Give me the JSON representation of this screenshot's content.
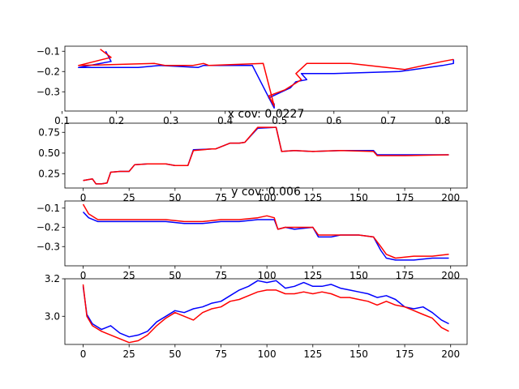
{
  "chart_data": [
    {
      "type": "line",
      "title": "",
      "xlabel": "",
      "ylabel": "",
      "xlim": [
        0.105,
        0.845
      ],
      "ylim": [
        -0.395,
        -0.075
      ],
      "xticks": [
        "0.1",
        "0.2",
        "0.3",
        "0.4",
        "0.5",
        "0.6",
        "0.7",
        "0.8"
      ],
      "yticks": [
        "-0.1",
        "-0.2",
        "-0.3"
      ],
      "series": [
        {
          "color": "#0000ff",
          "x": [
            0.18,
            0.19,
            0.13,
            0.24,
            0.28,
            0.35,
            0.36,
            0.45,
            0.49,
            0.49,
            0.48,
            0.52,
            0.53,
            0.55,
            0.54,
            0.6,
            0.72,
            0.8,
            0.82,
            0.82
          ],
          "y": [
            -0.1,
            -0.15,
            -0.18,
            -0.18,
            -0.17,
            -0.18,
            -0.17,
            -0.17,
            -0.38,
            -0.36,
            -0.33,
            -0.28,
            -0.25,
            -0.24,
            -0.21,
            -0.21,
            -0.2,
            -0.17,
            -0.16,
            -0.14
          ]
        },
        {
          "color": "#ff0000",
          "x": [
            0.17,
            0.19,
            0.13,
            0.27,
            0.29,
            0.34,
            0.36,
            0.37,
            0.47,
            0.49,
            0.48,
            0.51,
            0.54,
            0.53,
            0.55,
            0.63,
            0.73,
            0.8,
            0.82
          ],
          "y": [
            -0.09,
            -0.13,
            -0.17,
            -0.16,
            -0.17,
            -0.17,
            -0.16,
            -0.17,
            -0.16,
            -0.37,
            -0.32,
            -0.29,
            -0.24,
            -0.21,
            -0.16,
            -0.16,
            -0.19,
            -0.15,
            -0.14
          ]
        }
      ]
    },
    {
      "type": "line",
      "title": "x cov: 0.0227",
      "xlabel": "",
      "ylabel": "",
      "xlim": [
        -9.95,
        208.95
      ],
      "ylim": [
        0.08,
        0.86
      ],
      "xticks": [
        "0",
        "25",
        "50",
        "75",
        "100",
        "125",
        "150",
        "175",
        "200"
      ],
      "yticks": [
        "0.25",
        "0.50",
        "0.75"
      ],
      "series": [
        {
          "color": "#0000ff",
          "x": [
            0,
            5,
            7,
            10,
            13,
            15,
            20,
            25,
            28,
            35,
            45,
            50,
            57,
            60,
            70,
            72,
            80,
            85,
            88,
            95,
            105,
            108,
            115,
            125,
            140,
            158,
            160,
            175,
            199
          ],
          "y": [
            0.17,
            0.19,
            0.13,
            0.13,
            0.14,
            0.27,
            0.28,
            0.28,
            0.36,
            0.37,
            0.37,
            0.35,
            0.35,
            0.54,
            0.55,
            0.55,
            0.62,
            0.62,
            0.63,
            0.8,
            0.81,
            0.52,
            0.53,
            0.52,
            0.53,
            0.53,
            0.48,
            0.48,
            0.48
          ]
        },
        {
          "color": "#ff0000",
          "x": [
            0,
            5,
            7,
            10,
            13,
            15,
            20,
            25,
            28,
            35,
            45,
            50,
            57,
            60,
            70,
            72,
            80,
            85,
            88,
            95,
            105,
            108,
            115,
            125,
            140,
            158,
            160,
            175,
            199
          ],
          "y": [
            0.17,
            0.19,
            0.13,
            0.13,
            0.14,
            0.27,
            0.28,
            0.28,
            0.36,
            0.37,
            0.37,
            0.35,
            0.35,
            0.53,
            0.55,
            0.55,
            0.62,
            0.62,
            0.63,
            0.81,
            0.81,
            0.52,
            0.53,
            0.52,
            0.53,
            0.52,
            0.47,
            0.47,
            0.48
          ]
        }
      ]
    },
    {
      "type": "line",
      "title": "y cov: 0.006",
      "xlabel": "",
      "ylabel": "",
      "xlim": [
        -9.95,
        208.95
      ],
      "ylim": [
        -0.4,
        -0.063
      ],
      "xticks": [
        "0",
        "25",
        "50",
        "75",
        "100",
        "125",
        "150",
        "175",
        "200"
      ],
      "yticks": [
        "-0.1",
        "-0.2",
        "-0.3"
      ],
      "series": [
        {
          "color": "#0000ff",
          "x": [
            0,
            3,
            8,
            15,
            25,
            35,
            45,
            55,
            65,
            75,
            85,
            95,
            100,
            104,
            106,
            110,
            115,
            125,
            128,
            135,
            140,
            150,
            158,
            162,
            165,
            170,
            180,
            190,
            199
          ],
          "y": [
            -0.12,
            -0.15,
            -0.17,
            -0.17,
            -0.17,
            -0.17,
            -0.17,
            -0.18,
            -0.18,
            -0.17,
            -0.17,
            -0.16,
            -0.16,
            -0.16,
            -0.21,
            -0.2,
            -0.21,
            -0.2,
            -0.25,
            -0.25,
            -0.24,
            -0.24,
            -0.25,
            -0.32,
            -0.36,
            -0.37,
            -0.37,
            -0.36,
            -0.36
          ]
        },
        {
          "color": "#ff0000",
          "x": [
            0,
            3,
            8,
            15,
            25,
            35,
            45,
            55,
            65,
            75,
            85,
            95,
            100,
            104,
            106,
            110,
            115,
            125,
            128,
            135,
            140,
            150,
            158,
            162,
            165,
            170,
            180,
            190,
            199
          ],
          "y": [
            -0.08,
            -0.13,
            -0.16,
            -0.16,
            -0.16,
            -0.16,
            -0.16,
            -0.17,
            -0.17,
            -0.16,
            -0.16,
            -0.15,
            -0.14,
            -0.15,
            -0.21,
            -0.2,
            -0.2,
            -0.2,
            -0.24,
            -0.24,
            -0.24,
            -0.24,
            -0.25,
            -0.3,
            -0.34,
            -0.36,
            -0.35,
            -0.35,
            -0.34
          ]
        }
      ]
    },
    {
      "type": "line",
      "title": "",
      "xlabel": "",
      "ylabel": "",
      "xlim": [
        -9.95,
        208.95
      ],
      "ylim": [
        2.85,
        3.2
      ],
      "xticks": [
        "0",
        "25",
        "50",
        "75",
        "100",
        "125",
        "150",
        "175",
        "200"
      ],
      "yticks": [
        "3.0",
        "3.2"
      ],
      "series": [
        {
          "color": "#0000ff",
          "x": [
            0,
            2,
            5,
            10,
            15,
            20,
            25,
            30,
            35,
            40,
            45,
            50,
            55,
            60,
            65,
            70,
            75,
            80,
            85,
            90,
            95,
            100,
            105,
            110,
            115,
            120,
            125,
            130,
            135,
            140,
            145,
            150,
            155,
            160,
            165,
            170,
            175,
            180,
            185,
            190,
            195,
            199
          ],
          "y": [
            3.16,
            3.01,
            2.96,
            2.93,
            2.95,
            2.91,
            2.89,
            2.9,
            2.92,
            2.97,
            3.0,
            3.03,
            3.02,
            3.04,
            3.05,
            3.07,
            3.08,
            3.11,
            3.14,
            3.16,
            3.19,
            3.18,
            3.19,
            3.15,
            3.16,
            3.18,
            3.16,
            3.16,
            3.17,
            3.15,
            3.14,
            3.13,
            3.12,
            3.1,
            3.11,
            3.09,
            3.05,
            3.04,
            3.05,
            3.02,
            2.98,
            2.96
          ]
        },
        {
          "color": "#ff0000",
          "x": [
            0,
            2,
            5,
            10,
            15,
            20,
            25,
            30,
            35,
            40,
            45,
            50,
            55,
            60,
            65,
            70,
            75,
            80,
            85,
            90,
            95,
            100,
            105,
            110,
            115,
            120,
            125,
            130,
            135,
            140,
            145,
            150,
            155,
            160,
            165,
            170,
            175,
            180,
            185,
            190,
            195,
            199
          ],
          "y": [
            3.17,
            3.0,
            2.95,
            2.92,
            2.9,
            2.88,
            2.86,
            2.87,
            2.9,
            2.95,
            2.99,
            3.02,
            3.0,
            2.98,
            3.02,
            3.04,
            3.05,
            3.08,
            3.09,
            3.11,
            3.13,
            3.14,
            3.14,
            3.12,
            3.12,
            3.13,
            3.12,
            3.13,
            3.12,
            3.1,
            3.1,
            3.09,
            3.08,
            3.06,
            3.08,
            3.06,
            3.05,
            3.03,
            3.01,
            2.99,
            2.94,
            2.92
          ]
        }
      ]
    }
  ]
}
